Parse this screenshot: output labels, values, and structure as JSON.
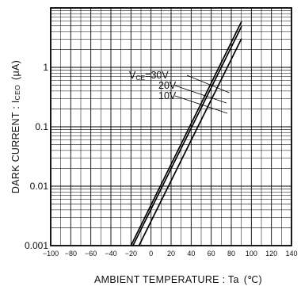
{
  "chart_data": {
    "type": "line",
    "xlabel": "AMBIENT TEMPERATURE : Ta",
    "xunit": "(℃)",
    "ylabel": "DARK CURRENT : I",
    "ylabel_sub": "CEO",
    "yunit": "(μA)",
    "xlim": [
      -100,
      140
    ],
    "ylim": [
      0.001,
      10
    ],
    "yscale": "log",
    "grid": true,
    "x_ticks": [
      -100,
      -80,
      -60,
      -40,
      -20,
      0,
      20,
      40,
      60,
      80,
      100,
      120,
      140
    ],
    "x_tick_labels": [
      "−100",
      "−80",
      "−60",
      "−40",
      "−20",
      "0",
      "20",
      "40",
      "60",
      "80",
      "100",
      "120",
      "140"
    ],
    "y_ticks": [
      0.001,
      0.01,
      0.1,
      1
    ],
    "y_tick_labels": [
      "0.001",
      "0.01",
      "0.1",
      "1"
    ],
    "series": [
      {
        "name": "VCE=30V",
        "label_main": "V",
        "label_sub": "CE",
        "label_rest": "=30V",
        "x": [
          -20,
          90
        ],
        "y": [
          0.001,
          5.8
        ]
      },
      {
        "name": "20V",
        "label_main": "20V",
        "label_sub": "",
        "label_rest": "",
        "x": [
          -18,
          90
        ],
        "y": [
          0.001,
          4.8
        ]
      },
      {
        "name": "10V",
        "label_main": "10V",
        "label_sub": "",
        "label_rest": "",
        "x": [
          -12,
          90
        ],
        "y": [
          0.001,
          3.0
        ]
      }
    ]
  }
}
